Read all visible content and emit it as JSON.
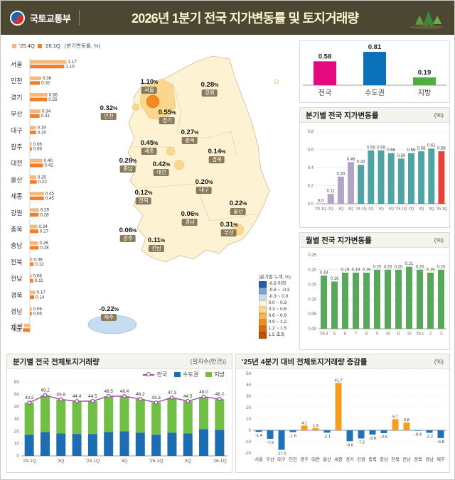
{
  "header": {
    "ministry": "국토교통부",
    "title": "2026년 1분기 전국 지가변동률 및 토지거래량"
  },
  "map_section": {
    "series_legend_note": "(분기변동률, %)",
    "map_legend_title": "(분기별 누계, %)",
    "map_legend": [
      {
        "label": "-0.6 이하",
        "color": "#2b5ca8"
      },
      {
        "label": "-0.6 ~ -0.3",
        "color": "#7da7d9"
      },
      {
        "label": "-0.3 ~ 0.0",
        "color": "#c6ddf1"
      },
      {
        "label": "0.0 ~ 0.3",
        "color": "#fdf3d2"
      },
      {
        "label": "0.3 ~ 0.6",
        "color": "#fbd68f"
      },
      {
        "label": "0.6 ~ 0.9",
        "color": "#f9b457"
      },
      {
        "label": "0.9 ~ 1.2",
        "color": "#ef8b21"
      },
      {
        "label": "1.2 ~ 1.5",
        "color": "#dd6a0d"
      },
      {
        "label": "1.5 초과",
        "color": "#c14f05"
      }
    ]
  },
  "chart_data": [
    {
      "id": "region-bars",
      "type": "bar",
      "orientation": "horizontal",
      "categories": [
        "서울",
        "인천",
        "경기",
        "부산",
        "대구",
        "광주",
        "대전",
        "울산",
        "세종",
        "강원",
        "충북",
        "충남",
        "전북",
        "전남",
        "경북",
        "경남",
        "제주"
      ],
      "series": [
        {
          "name": "'25.4Q",
          "color": "#f5b97e",
          "values": [
            1.17,
            0.36,
            0.56,
            0.34,
            0.19,
            0.06,
            0.4,
            0.2,
            0.45,
            0.29,
            0.24,
            0.26,
            0.08,
            0.06,
            0.17,
            0.06,
            -0.19
          ]
        },
        {
          "name": "'26.1Q",
          "color": "#ee7f2d",
          "values": [
            1.1,
            0.32,
            0.55,
            0.31,
            0.2,
            0.06,
            0.42,
            0.22,
            0.45,
            0.28,
            0.27,
            0.28,
            0.12,
            0.11,
            0.14,
            0.06,
            -0.22
          ]
        }
      ]
    },
    {
      "id": "summary",
      "type": "bar",
      "categories": [
        "전국",
        "수도권",
        "지방"
      ],
      "values": [
        0.58,
        0.81,
        0.19
      ],
      "colors": [
        "#e4097e",
        "#0b72ba",
        "#4fae3d"
      ]
    },
    {
      "id": "quarterly",
      "type": "bar",
      "title": "분기별 전국 지가변동률",
      "unit": "(%)",
      "categories": [
        "'23.1Q",
        "2Q",
        "3Q",
        "4Q",
        "'24.1Q",
        "2Q",
        "3Q",
        "4Q",
        "'25.1Q",
        "2Q",
        "3Q",
        "4Q",
        "'26.1Q"
      ],
      "values": [
        0.0,
        0.11,
        0.3,
        0.46,
        0.43,
        0.59,
        0.59,
        0.56,
        0.5,
        0.56,
        0.58,
        0.61,
        0.58
      ],
      "value_labels": [
        "0.0",
        "0.11",
        "0.30",
        "0.46",
        "0.43",
        "0.59",
        "0.59",
        "0.56",
        "0.50",
        "0.56",
        "0.58",
        "0.61",
        "0.58"
      ],
      "colors": [
        "#b2a4c8",
        "#b2a4c8",
        "#b2a4c8",
        "#b2a4c8",
        "#4fa3a3",
        "#4fa3a3",
        "#4fa3a3",
        "#4fa3a3",
        "#4fa3a3",
        "#4fa3a3",
        "#4fa3a3",
        "#4fa3a3",
        "#e0453a"
      ],
      "ylim": [
        0,
        0.8
      ],
      "ytick": 0.2
    },
    {
      "id": "monthly",
      "type": "bar",
      "title": "월별 전국 지가변동률",
      "unit": "(%)",
      "categories": [
        "'25.4",
        "5",
        "6",
        "7",
        "8",
        "9",
        "10",
        "11",
        "12",
        "'26.1",
        "2",
        "3"
      ],
      "values": [
        0.18,
        0.16,
        0.19,
        0.19,
        0.19,
        0.2,
        0.2,
        0.2,
        0.21,
        0.2,
        0.19,
        0.2
      ],
      "color": "#58a85c",
      "ylim": [
        0,
        0.25
      ],
      "ytick": 0.05
    },
    {
      "id": "transactions",
      "type": "stacked-bar-line",
      "title": "분기별 전국 전체토지거래량",
      "unit": "(필지수(만건))",
      "categories": [
        "'23.1Q",
        "2Q",
        "3Q",
        "4Q",
        "'24.1Q",
        "2Q",
        "3Q",
        "4Q",
        "'25.1Q",
        "2Q",
        "3Q",
        "4Q",
        "'26.1Q"
      ],
      "totals": [
        43.2,
        49.2,
        45.8,
        44.4,
        44.5,
        48.5,
        48.4,
        46.2,
        43.3,
        47.3,
        44.5,
        48.0,
        46.2
      ],
      "series": [
        {
          "name": "수도권",
          "color": "#1e6db3",
          "values": [
            17.2,
            19.4,
            18.3,
            17.8,
            17.8,
            19.4,
            20.0,
            18.9,
            17.2,
            18.9,
            18.3,
            21.7,
            21.1
          ]
        },
        {
          "name": "지방",
          "color": "#71bf44",
          "values": [
            26.0,
            29.8,
            27.5,
            26.6,
            26.7,
            29.1,
            28.4,
            27.3,
            26.1,
            28.4,
            26.2,
            26.3,
            25.1
          ]
        }
      ],
      "line": {
        "name": "전국",
        "color": "#9a4ea3"
      },
      "ylim": [
        0,
        60
      ],
      "ytick": 10
    },
    {
      "id": "change",
      "type": "bar",
      "title": "'25년 4분기 대비 전체토지거래량 증감률",
      "unit": "(%)",
      "categories": [
        "서울",
        "부산",
        "대구",
        "인천",
        "광주",
        "대전",
        "울산",
        "세종",
        "경기",
        "강원",
        "충북",
        "충남",
        "전북",
        "전남",
        "경북",
        "경남",
        "제주"
      ],
      "values": [
        -1.4,
        -7.5,
        -17.2,
        -1.6,
        4.1,
        1.9,
        -2.1,
        41.7,
        -9.6,
        -7.2,
        -3.8,
        -2.5,
        9.7,
        6.8,
        -0.4,
        -2.2,
        -6.8
      ],
      "pos_color": "#f59d20",
      "neg_color": "#1d72b8",
      "ylim": [
        -20,
        50
      ],
      "ytick": 10
    }
  ]
}
